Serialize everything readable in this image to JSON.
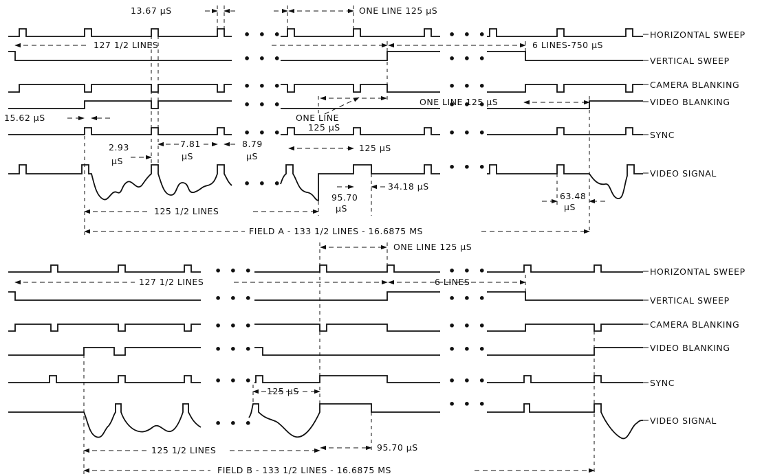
{
  "field_a": {
    "signals": [
      "HORIZONTAL SWEEP",
      "VERTICAL SWEEP",
      "CAMERA BLANKING",
      "VIDEO BLANKING",
      "SYNC",
      "VIDEO SIGNAL"
    ],
    "dims": {
      "d_13_67": "13.67 µS",
      "d_one_line_top": "ONE LINE 125 µS",
      "d_127_half": "127 1/2 LINES",
      "d_6_lines_750": "6 LINES-750 µS",
      "d_one_line_right": "ONE LINE 125 µS",
      "d_one_line_diag_1": "ONE LINE",
      "d_one_line_diag_2": "125 µS",
      "d_15_62": "15.62 µS",
      "d_2_93_1": "2.93",
      "d_2_93_2": "µS",
      "d_7_81_1": "7.81",
      "d_7_81_2": "µS",
      "d_8_79_1": "8.79",
      "d_8_79_2": "µS",
      "d_125": "125 µS",
      "d_34_18": "34.18 µS",
      "d_95_70_1": "95.70",
      "d_95_70_2": "µS",
      "d_63_48_1": "63.48",
      "d_63_48_2": "µS",
      "d_125_half": "125 1/2 LINES",
      "d_field": "FIELD A - 133  1/2 LINES - 16.6875 MS"
    }
  },
  "field_b": {
    "signals": [
      "HORIZONTAL SWEEP",
      "VERTICAL SWEEP",
      "CAMERA BLANKING",
      "VIDEO BLANKING",
      "SYNC",
      "VIDEO SIGNAL"
    ],
    "dims": {
      "d_one_line": "ONE LINE 125 µS",
      "d_127_half": "127 1/2 LINES",
      "d_6_lines": "6 LINES",
      "d_125": "125 µS",
      "d_95_70": "95.70 µS",
      "d_125_half": "125 1/2 LINES",
      "d_field": "FIELD B - 133  1/2 LINES - 16.6875 MS"
    }
  },
  "ellipsis": "• • •"
}
